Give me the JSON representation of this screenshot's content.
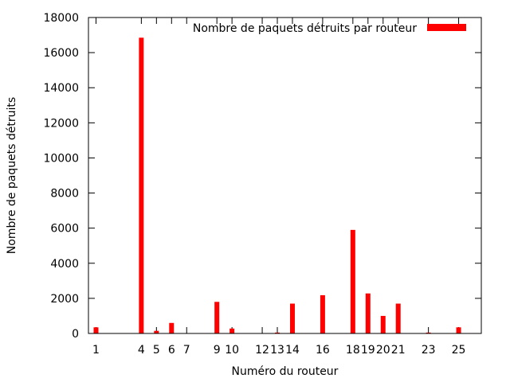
{
  "chart_data": {
    "type": "bar",
    "xlabel": "Numéro du routeur",
    "ylabel": "Nombre de paquets détruits",
    "ylim": [
      0,
      18000
    ],
    "xlim": [
      0.5,
      26.5
    ],
    "y_ticks": [
      0,
      2000,
      4000,
      6000,
      8000,
      10000,
      12000,
      14000,
      16000,
      18000
    ],
    "x_tick_labels": [
      "1",
      "4",
      "5",
      "6",
      "7",
      "9",
      "10",
      "12",
      "13",
      "14",
      "16",
      "18",
      "19",
      "20",
      "21",
      "23",
      "25"
    ],
    "x_tick_positions": [
      1,
      4,
      5,
      6,
      7,
      9,
      10,
      12,
      13,
      14,
      16,
      18,
      19,
      20,
      21,
      23,
      25
    ],
    "grid": false,
    "legend_position": "top-right",
    "series": [
      {
        "name": "Nombre de paquets détruits par routeur",
        "color": "#ff0000",
        "x": [
          1,
          4,
          5,
          6,
          9,
          10,
          13,
          14,
          16,
          18,
          19,
          20,
          21,
          23,
          25
        ],
        "values": [
          350,
          16850,
          150,
          600,
          1800,
          280,
          50,
          1700,
          2180,
          5900,
          2280,
          1000,
          1700,
          50,
          350
        ]
      }
    ]
  }
}
